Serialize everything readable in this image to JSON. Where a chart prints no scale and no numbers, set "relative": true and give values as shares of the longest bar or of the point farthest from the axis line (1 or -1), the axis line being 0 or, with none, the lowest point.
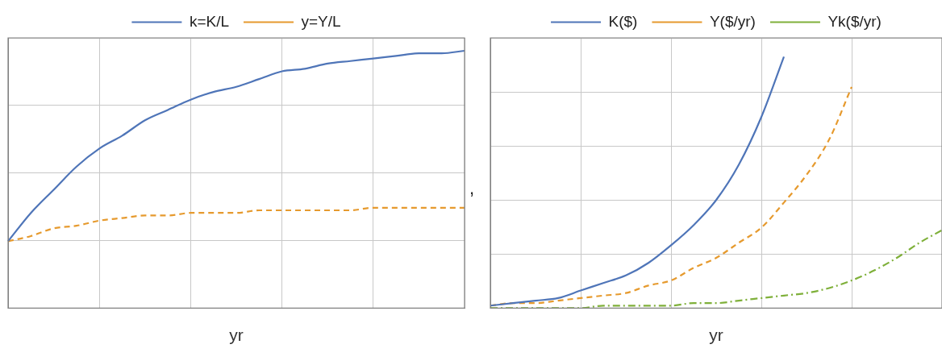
{
  "chart_data": [
    {
      "type": "line",
      "relative": true,
      "xlabel": "yr",
      "grid": true,
      "legend": "top",
      "annotations": [
        ","
      ],
      "categories": [
        null,
        null,
        null,
        null,
        null,
        null,
        null,
        null,
        null,
        null,
        null,
        null,
        null,
        null,
        null,
        null,
        null,
        null,
        null,
        null,
        null
      ],
      "series": [
        {
          "name": "k=K/L",
          "color": "#4f75b8",
          "line_style": "solid",
          "values": [
            0.26,
            0.37,
            0.46,
            0.55,
            0.62,
            0.67,
            0.73,
            0.77,
            0.81,
            0.84,
            0.86,
            0.89,
            0.92,
            0.93,
            0.95,
            0.96,
            0.97,
            0.98,
            0.99,
            0.99,
            1
          ]
        },
        {
          "name": "y=Y/L",
          "color": "#e69a2e",
          "line_style": "dashed",
          "values": [
            0.26,
            0.28,
            0.31,
            0.32,
            0.34,
            0.35,
            0.36,
            0.36,
            0.37,
            0.37,
            0.37,
            0.38,
            0.38,
            0.38,
            0.38,
            0.38,
            0.39,
            0.39,
            0.39,
            0.39,
            0.39
          ]
        }
      ]
    },
    {
      "type": "line",
      "relative": true,
      "xlabel": "yr",
      "grid": true,
      "legend": "top",
      "categories": [
        null,
        null,
        null,
        null,
        null,
        null,
        null,
        null,
        null,
        null,
        null,
        null,
        null,
        null,
        null,
        null,
        null,
        null,
        null,
        null,
        null
      ],
      "series": [
        {
          "name": "K($)",
          "color": "#4f75b8",
          "line_style": "solid",
          "values": [
            0.01,
            0.02,
            0.03,
            0.04,
            0.07,
            0.1,
            0.13,
            0.18,
            0.25,
            0.33,
            0.43,
            0.57,
            0.76,
            1.0,
            null,
            null,
            null,
            null,
            null,
            null,
            null
          ]
        },
        {
          "name": "Y($/yr)",
          "color": "#e69a2e",
          "line_style": "dashed",
          "values": [
            0.01,
            0.02,
            0.02,
            0.03,
            0.04,
            0.05,
            0.06,
            0.09,
            0.11,
            0.16,
            0.2,
            0.26,
            0.32,
            0.42,
            0.53,
            0.67,
            0.88,
            null,
            null,
            null,
            null
          ]
        },
        {
          "name": "Yk($/yr)",
          "color": "#7fb03a",
          "line_style": "dotted",
          "values": [
            0,
            0,
            0,
            0,
            0,
            0.01,
            0.01,
            0.01,
            0.01,
            0.02,
            0.02,
            0.03,
            0.04,
            0.05,
            0.06,
            0.08,
            0.11,
            0.15,
            0.2,
            0.26,
            0.31
          ]
        }
      ]
    }
  ]
}
